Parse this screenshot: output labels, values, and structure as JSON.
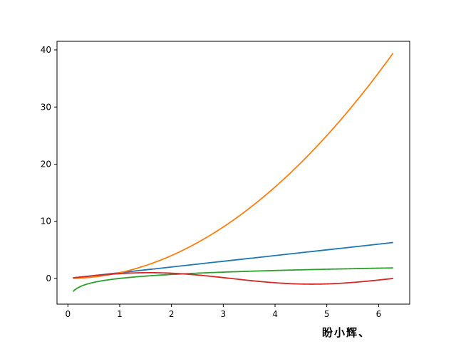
{
  "chart_data": {
    "type": "line",
    "xlim": [
      -0.21,
      6.6
    ],
    "ylim": [
      -4.5,
      41.5
    ],
    "xticks": [
      0,
      1,
      2,
      3,
      4,
      5,
      6
    ],
    "yticks": [
      0,
      10,
      20,
      30,
      40
    ],
    "xtick_labels": [
      "0",
      "1",
      "2",
      "3",
      "4",
      "5",
      "6"
    ],
    "ytick_labels": [
      "0",
      "10",
      "20",
      "30",
      "40"
    ],
    "grid": false,
    "series": [
      {
        "function": "y = x",
        "x_range": [
          0.1,
          6.28
        ],
        "color": "#1f77b4"
      },
      {
        "function": "y = x^2",
        "x_range": [
          0.1,
          6.28
        ],
        "color": "#ff7f0e"
      },
      {
        "function": "y = ln(x)",
        "x_range": [
          0.1,
          6.28
        ],
        "color": "#2ca02c"
      },
      {
        "function": "y = sin(x)",
        "x_range": [
          0.1,
          6.28
        ],
        "color": "#d62728"
      }
    ]
  },
  "watermark": "盼小辉、"
}
